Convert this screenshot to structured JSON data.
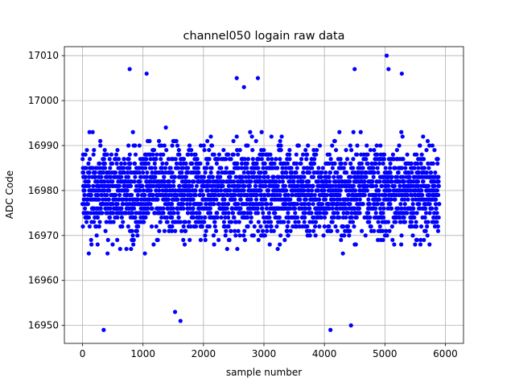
{
  "chart_data": {
    "type": "scatter",
    "title": "channel050 logain raw data",
    "xlabel": "sample number",
    "ylabel": "ADC Code",
    "xlim": [
      -300,
      6300
    ],
    "ylim": [
      16946,
      17012
    ],
    "xticks": [
      0,
      1000,
      2000,
      3000,
      4000,
      5000,
      6000
    ],
    "yticks": [
      16950,
      16960,
      16970,
      16980,
      16990,
      17000,
      17010
    ],
    "grid": true,
    "marker_color": "#0000ff",
    "n_samples": 5900,
    "y_center": 16980,
    "y_spread_typical": [
      16960,
      17000
    ],
    "notable_points": [
      {
        "x": 350,
        "y": 16949
      },
      {
        "x": 1620,
        "y": 16951
      },
      {
        "x": 1530,
        "y": 16953
      },
      {
        "x": 4100,
        "y": 16949
      },
      {
        "x": 4440,
        "y": 16950
      },
      {
        "x": 780,
        "y": 17007
      },
      {
        "x": 1060,
        "y": 17006
      },
      {
        "x": 4500,
        "y": 17007
      },
      {
        "x": 5030,
        "y": 17010
      },
      {
        "x": 5060,
        "y": 17007
      },
      {
        "x": 5280,
        "y": 17006
      },
      {
        "x": 2550,
        "y": 17005
      },
      {
        "x": 2900,
        "y": 17005
      },
      {
        "x": 2670,
        "y": 17003
      }
    ]
  }
}
